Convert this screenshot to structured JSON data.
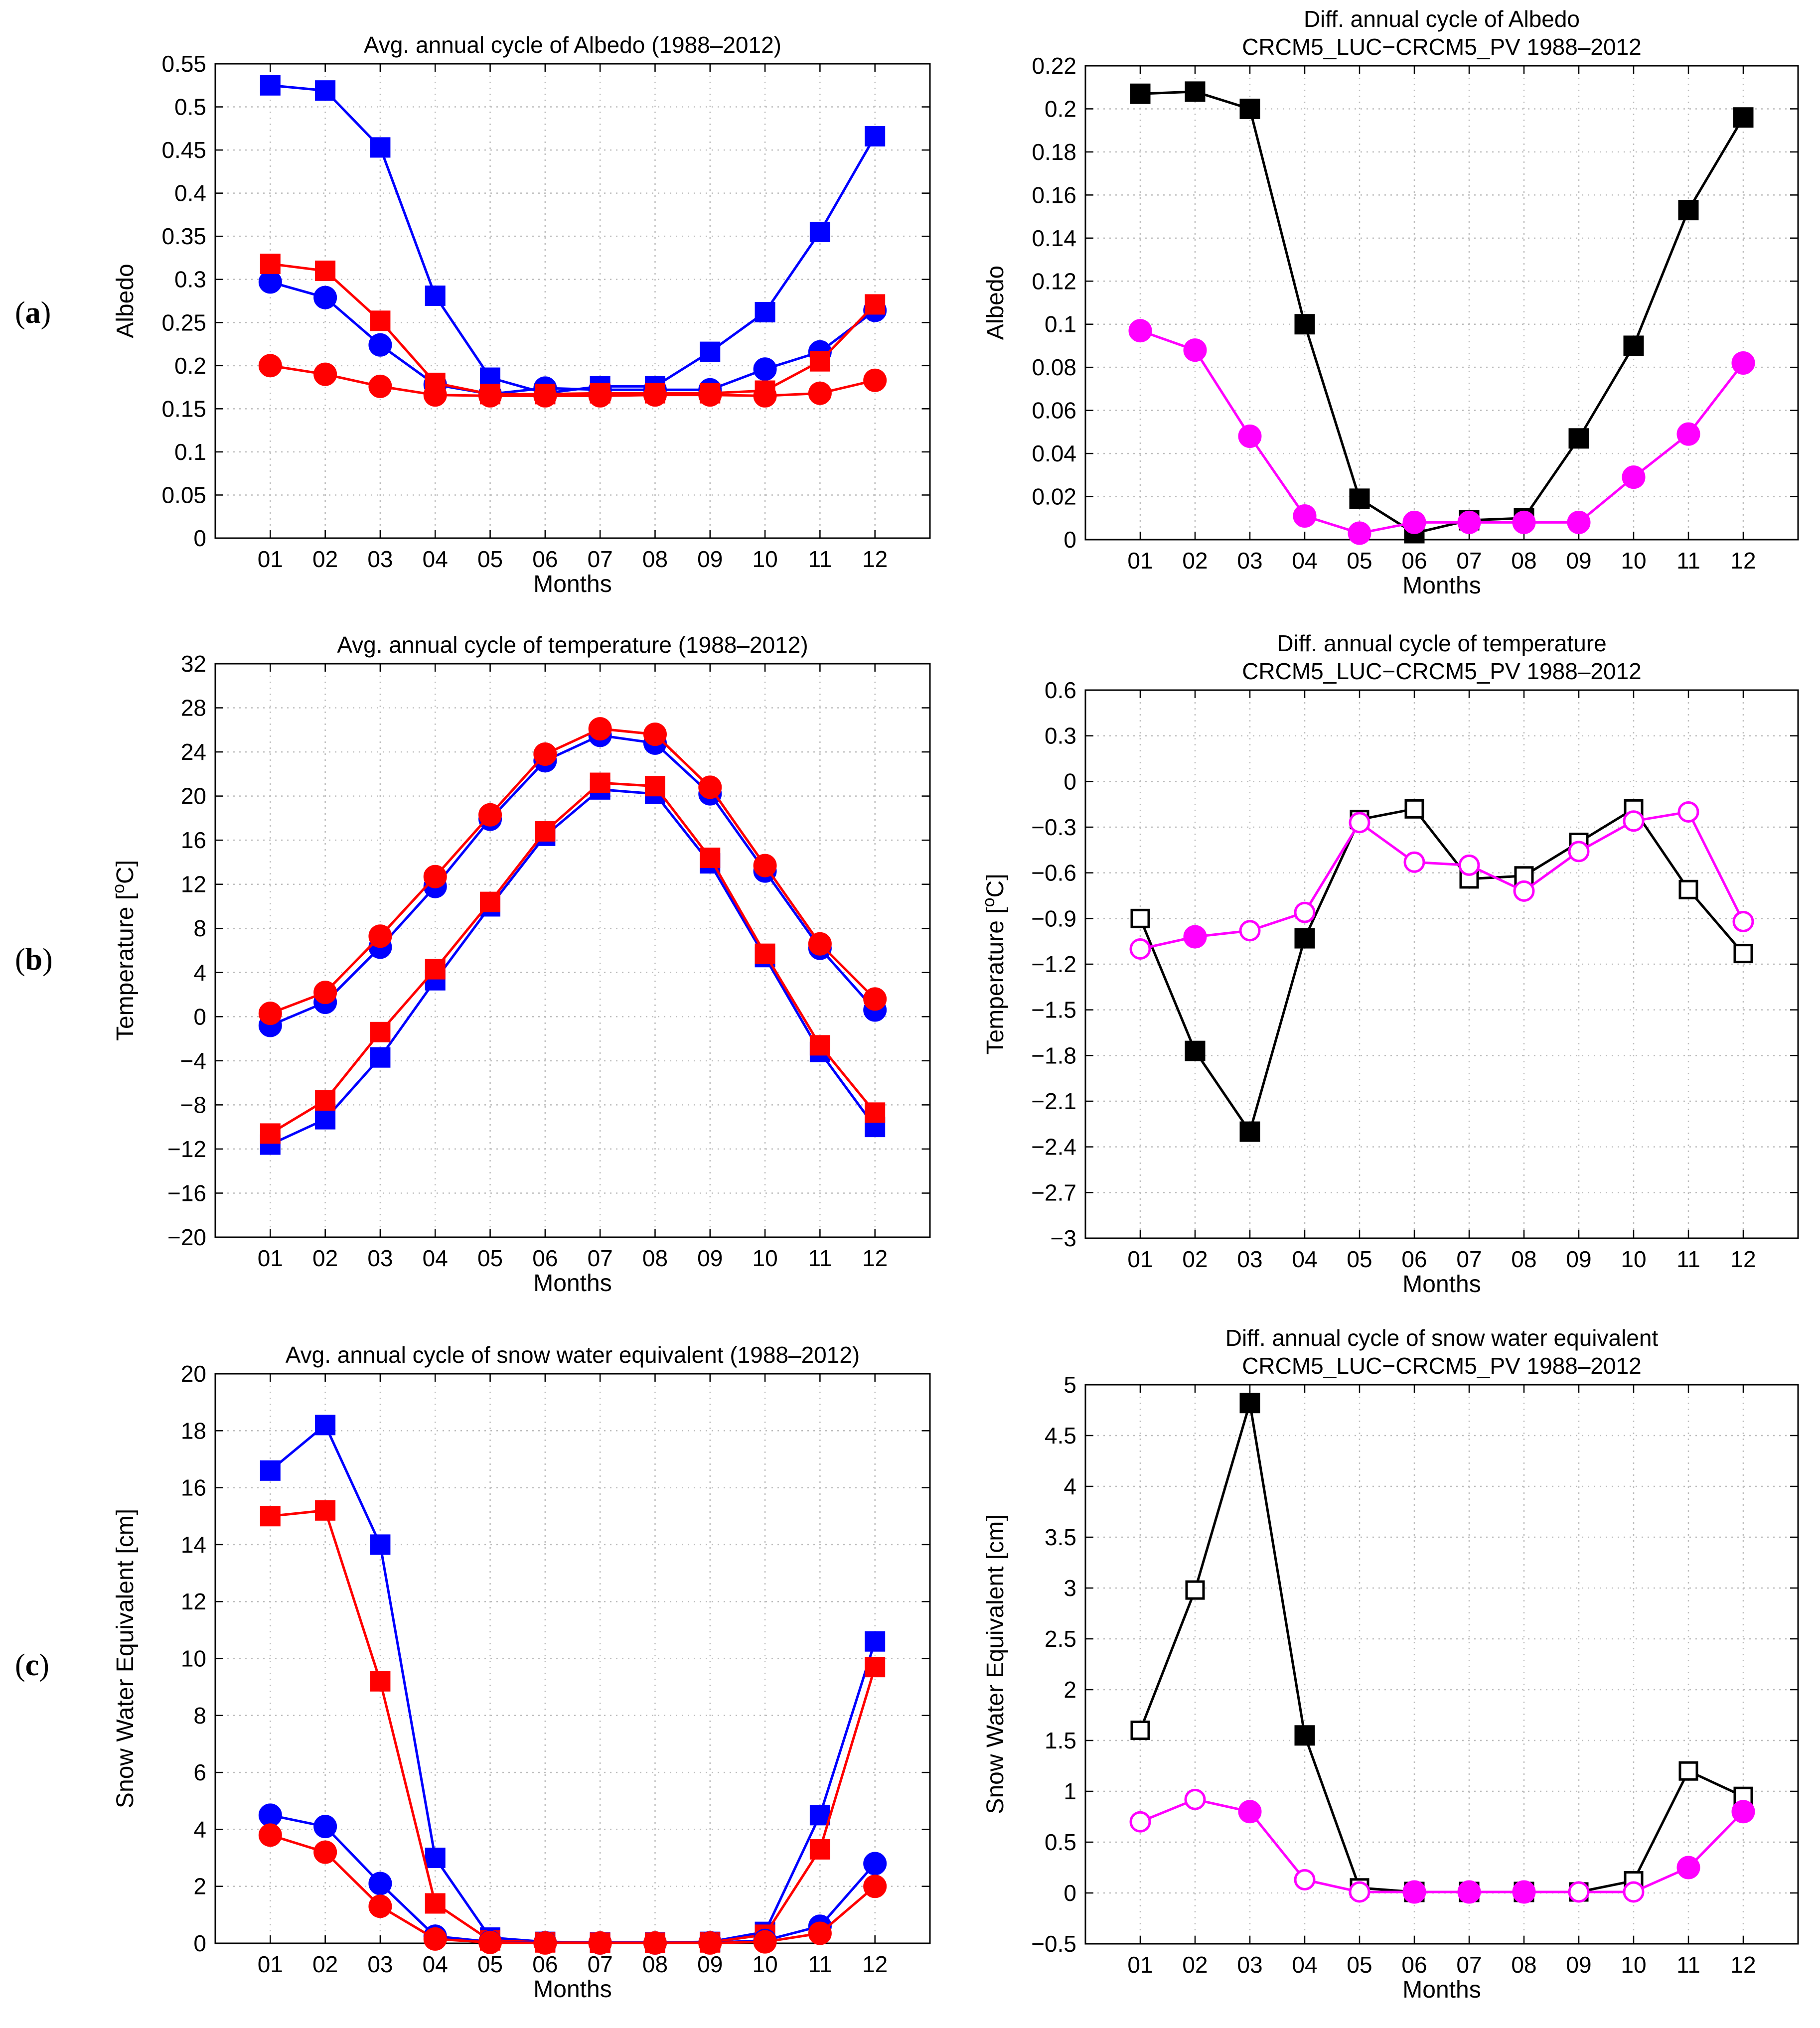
{
  "colors": {
    "blue": "#0000ff",
    "red": "#ff0000",
    "black": "#000000",
    "magenta": "#ff00ff",
    "grid": "#bdbdbd"
  },
  "row_labels": [
    {
      "open": "(",
      "letter": "a",
      "close": ")"
    },
    {
      "open": "(",
      "letter": "b",
      "close": ")"
    },
    {
      "open": "(",
      "letter": "c",
      "close": ")"
    }
  ],
  "chart_data": [
    {
      "type": "line",
      "title": [
        "Avg. annual cycle of Albedo (1988–2012)"
      ],
      "xlabel": "Months",
      "ylabel": "Albedo",
      "categories": [
        "01",
        "02",
        "03",
        "04",
        "05",
        "06",
        "07",
        "08",
        "09",
        "10",
        "11",
        "12"
      ],
      "ylim": [
        0,
        0.55
      ],
      "yticks": [
        "0",
        "0.05",
        "0.1",
        "0.15",
        "0.2",
        "0.25",
        "0.3",
        "0.35",
        "0.4",
        "0.45",
        "0.5",
        "0.55"
      ],
      "grid": true,
      "series": [
        {
          "name": "blue squares",
          "color": "blue",
          "marker": "square",
          "values": [
            0.525,
            0.519,
            0.453,
            0.281,
            0.186,
            0.168,
            0.176,
            0.176,
            0.216,
            0.262,
            0.355,
            0.466
          ]
        },
        {
          "name": "blue circles",
          "color": "blue",
          "marker": "circle",
          "values": [
            0.297,
            0.279,
            0.224,
            0.178,
            0.167,
            0.174,
            0.172,
            0.172,
            0.172,
            0.196,
            0.216,
            0.264
          ]
        },
        {
          "name": "red squares",
          "color": "red",
          "marker": "square",
          "values": [
            0.318,
            0.31,
            0.252,
            0.18,
            0.167,
            0.167,
            0.168,
            0.168,
            0.168,
            0.171,
            0.205,
            0.271
          ]
        },
        {
          "name": "red circles",
          "color": "red",
          "marker": "circle",
          "values": [
            0.2,
            0.19,
            0.176,
            0.166,
            0.165,
            0.165,
            0.165,
            0.166,
            0.166,
            0.165,
            0.168,
            0.183
          ]
        }
      ]
    },
    {
      "type": "line",
      "title": [
        "Diff. annual cycle of Albedo",
        "CRCM5_LUC−CRCM5_PV 1988–2012"
      ],
      "xlabel": "Months",
      "ylabel": "Albedo",
      "categories": [
        "01",
        "02",
        "03",
        "04",
        "05",
        "06",
        "07",
        "08",
        "09",
        "10",
        "11",
        "12"
      ],
      "ylim": [
        0,
        0.22
      ],
      "yticks": [
        "0",
        "0.02",
        "0.04",
        "0.06",
        "0.08",
        "0.1",
        "0.12",
        "0.14",
        "0.16",
        "0.18",
        "0.2",
        "0.22"
      ],
      "grid": true,
      "series": [
        {
          "name": "black squares",
          "color": "black",
          "marker": "square",
          "values": [
            0.207,
            0.208,
            0.2,
            0.1,
            0.019,
            0.003,
            0.009,
            0.01,
            0.047,
            0.09,
            0.153,
            0.196
          ]
        },
        {
          "name": "magenta circles",
          "color": "magenta",
          "marker": "circle",
          "values": [
            0.097,
            0.088,
            0.048,
            0.011,
            0.003,
            0.008,
            0.008,
            0.008,
            0.008,
            0.029,
            0.049,
            0.082
          ]
        }
      ]
    },
    {
      "type": "line",
      "title": [
        "Avg. annual cycle of temperature (1988–2012)"
      ],
      "xlabel": "Months",
      "ylabel": "Temperature [°C]",
      "ylabel_parts": [
        "Temperature [",
        "o",
        "C]"
      ],
      "categories": [
        "01",
        "02",
        "03",
        "04",
        "05",
        "06",
        "07",
        "08",
        "09",
        "10",
        "11",
        "12"
      ],
      "ylim": [
        -20,
        32
      ],
      "yticks": [
        "−20",
        "−16",
        "−12",
        "−8",
        "−4",
        "0",
        "4",
        "8",
        "12",
        "16",
        "20",
        "24",
        "28",
        "32"
      ],
      "grid": true,
      "series": [
        {
          "name": "blue circles",
          "color": "blue",
          "marker": "circle",
          "values": [
            -0.8,
            1.3,
            6.3,
            11.8,
            17.9,
            23.2,
            25.5,
            24.8,
            20.2,
            13.2,
            6.2,
            0.6
          ]
        },
        {
          "name": "red circles",
          "color": "red",
          "marker": "circle",
          "values": [
            0.3,
            2.2,
            7.3,
            12.7,
            18.3,
            23.8,
            26.1,
            25.6,
            20.8,
            13.7,
            6.6,
            1.6
          ]
        },
        {
          "name": "blue squares",
          "color": "blue",
          "marker": "square",
          "values": [
            -11.6,
            -9.3,
            -3.7,
            3.3,
            10.0,
            16.4,
            20.6,
            20.2,
            13.9,
            5.4,
            -3.2,
            -10.0
          ]
        },
        {
          "name": "red squares",
          "color": "red",
          "marker": "square",
          "values": [
            -10.6,
            -7.6,
            -1.4,
            4.3,
            10.4,
            16.8,
            21.2,
            20.9,
            14.4,
            5.7,
            -2.6,
            -8.7
          ]
        }
      ]
    },
    {
      "type": "line",
      "title": [
        "Diff. annual cycle of temperature",
        "CRCM5_LUC−CRCM5_PV 1988–2012"
      ],
      "xlabel": "Months",
      "ylabel": "Temperature [°C]",
      "ylabel_parts": [
        "Temperature [",
        "o",
        "C]"
      ],
      "categories": [
        "01",
        "02",
        "03",
        "04",
        "05",
        "06",
        "07",
        "08",
        "09",
        "10",
        "11",
        "12"
      ],
      "ylim": [
        -3,
        0.6
      ],
      "yticks": [
        "−3",
        "−2.7",
        "−2.4",
        "−2.1",
        "−1.8",
        "−1.5",
        "−1.2",
        "−0.9",
        "−0.6",
        "−0.3",
        "0",
        "0.3",
        "0.6"
      ],
      "grid": true,
      "series": [
        {
          "name": "black squares",
          "color": "black",
          "marker": "square",
          "values": [
            -0.9,
            -1.77,
            -2.3,
            -1.03,
            -0.25,
            -0.18,
            -0.64,
            -0.62,
            -0.4,
            -0.18,
            -0.71,
            -1.13
          ],
          "filled": [
            false,
            true,
            true,
            true,
            false,
            false,
            false,
            false,
            false,
            false,
            false,
            false
          ]
        },
        {
          "name": "magenta circles",
          "color": "magenta",
          "marker": "circle",
          "values": [
            -1.1,
            -1.02,
            -0.98,
            -0.86,
            -0.27,
            -0.53,
            -0.55,
            -0.72,
            -0.46,
            -0.26,
            -0.2,
            -0.92
          ],
          "filled": [
            false,
            true,
            false,
            false,
            false,
            false,
            false,
            false,
            false,
            false,
            false,
            false
          ]
        }
      ]
    },
    {
      "type": "line",
      "title": [
        "Avg. annual cycle of snow water equivalent (1988–2012)"
      ],
      "xlabel": "Months",
      "ylabel": "Snow Water Equivalent [cm]",
      "categories": [
        "01",
        "02",
        "03",
        "04",
        "05",
        "06",
        "07",
        "08",
        "09",
        "10",
        "11",
        "12"
      ],
      "ylim": [
        0,
        20
      ],
      "yticks": [
        "0",
        "2",
        "4",
        "6",
        "8",
        "10",
        "12",
        "14",
        "16",
        "18",
        "20"
      ],
      "grid": true,
      "series": [
        {
          "name": "blue squares",
          "color": "blue",
          "marker": "square",
          "values": [
            16.6,
            18.2,
            14.0,
            3.0,
            0.2,
            0.05,
            0.03,
            0.03,
            0.05,
            0.4,
            4.5,
            10.6
          ]
        },
        {
          "name": "red squares",
          "color": "red",
          "marker": "square",
          "values": [
            15.0,
            15.2,
            9.2,
            1.4,
            0.1,
            0.03,
            0.02,
            0.02,
            0.03,
            0.3,
            3.3,
            9.7
          ]
        },
        {
          "name": "blue circles",
          "color": "blue",
          "marker": "circle",
          "values": [
            4.5,
            4.1,
            2.1,
            0.25,
            0.05,
            0.02,
            0.01,
            0.01,
            0.02,
            0.1,
            0.6,
            2.8
          ]
        },
        {
          "name": "red circles",
          "color": "red",
          "marker": "circle",
          "values": [
            3.8,
            3.2,
            1.3,
            0.15,
            0.03,
            0.01,
            0.01,
            0.01,
            0.01,
            0.05,
            0.35,
            2.0
          ]
        }
      ]
    },
    {
      "type": "line",
      "title": [
        "Diff. annual cycle of snow water equivalent",
        "CRCM5_LUC−CRCM5_PV 1988–2012"
      ],
      "xlabel": "Months",
      "ylabel": "Snow Water Equivalent [cm]",
      "categories": [
        "01",
        "02",
        "03",
        "04",
        "05",
        "06",
        "07",
        "08",
        "09",
        "10",
        "11",
        "12"
      ],
      "ylim": [
        -0.5,
        5
      ],
      "yticks": [
        "−0.5",
        "0",
        "0.5",
        "1",
        "1.5",
        "2",
        "2.5",
        "3",
        "3.5",
        "4",
        "4.5",
        "5"
      ],
      "grid": true,
      "series": [
        {
          "name": "black squares",
          "color": "black",
          "marker": "square",
          "values": [
            1.6,
            2.98,
            4.82,
            1.55,
            0.05,
            0.01,
            0.01,
            0.01,
            0.01,
            0.12,
            1.2,
            0.95
          ],
          "filled": [
            false,
            false,
            true,
            true,
            false,
            true,
            true,
            true,
            false,
            false,
            false,
            false
          ]
        },
        {
          "name": "magenta circles",
          "color": "magenta",
          "marker": "circle",
          "values": [
            0.7,
            0.92,
            0.8,
            0.13,
            0.01,
            0.01,
            0.01,
            0.01,
            0.01,
            0.01,
            0.25,
            0.8
          ],
          "filled": [
            false,
            false,
            true,
            false,
            false,
            true,
            true,
            true,
            false,
            false,
            true,
            true
          ]
        }
      ]
    }
  ]
}
